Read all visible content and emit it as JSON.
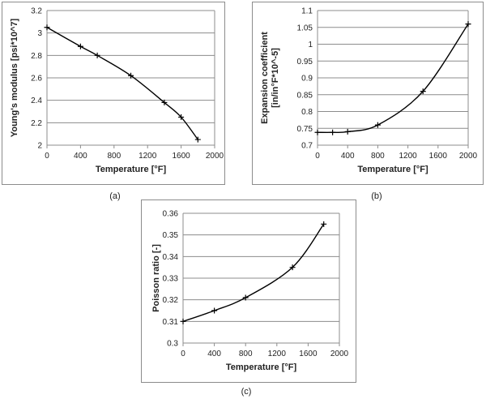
{
  "captions": {
    "a": "(a)",
    "b": "(b)",
    "c": "(c)"
  },
  "chart_data": [
    {
      "type": "line",
      "xlabel": "Temperature [°F]",
      "ylabel": [
        "Young's modulus [psi*10^7]"
      ],
      "xlim": [
        0,
        2000
      ],
      "ylim": [
        2,
        3.2
      ],
      "xticks": [
        "0",
        "400",
        "800",
        "1200",
        "1600",
        "2000"
      ],
      "yticks": [
        "2",
        "2.2",
        "2.4",
        "2.6",
        "2.8",
        "3",
        "3.2"
      ],
      "grid": "horizontal",
      "legend": "none",
      "series": [
        {
          "x": [
            0,
            400,
            600,
            1000,
            1400,
            1600,
            1800
          ],
          "y": [
            3.05,
            2.88,
            2.8,
            2.62,
            2.38,
            2.25,
            2.05
          ]
        }
      ]
    },
    {
      "type": "line",
      "xlabel": "Temperature [°F]",
      "ylabel": [
        "Expansion coefficient",
        "[in/in°F*10^-5]"
      ],
      "xlim": [
        0,
        2000
      ],
      "ylim": [
        0.7,
        1.1
      ],
      "xticks": [
        "0",
        "400",
        "800",
        "1200",
        "1600",
        "2000"
      ],
      "yticks": [
        "0.7",
        "0.75",
        "0.8",
        "0.85",
        "0.9",
        "0.95",
        "1",
        "1.05",
        "1.1"
      ],
      "grid": "horizontal",
      "legend": "none",
      "series": [
        {
          "x": [
            0,
            200,
            400,
            800,
            1400,
            2000
          ],
          "y": [
            0.738,
            0.738,
            0.74,
            0.76,
            0.86,
            1.06
          ]
        }
      ]
    },
    {
      "type": "line",
      "xlabel": "Temperature [°F]",
      "ylabel": [
        "Poisson ratio [-]"
      ],
      "xlim": [
        0,
        2000
      ],
      "ylim": [
        0.3,
        0.36
      ],
      "xticks": [
        "0",
        "400",
        "800",
        "1200",
        "1600",
        "2000"
      ],
      "yticks": [
        "0.3",
        "0.31",
        "0.32",
        "0.33",
        "0.34",
        "0.35",
        "0.36"
      ],
      "grid": "horizontal",
      "legend": "none",
      "series": [
        {
          "x": [
            0,
            400,
            800,
            1400,
            1800
          ],
          "y": [
            0.31,
            0.315,
            0.321,
            0.335,
            0.355
          ]
        }
      ]
    }
  ]
}
